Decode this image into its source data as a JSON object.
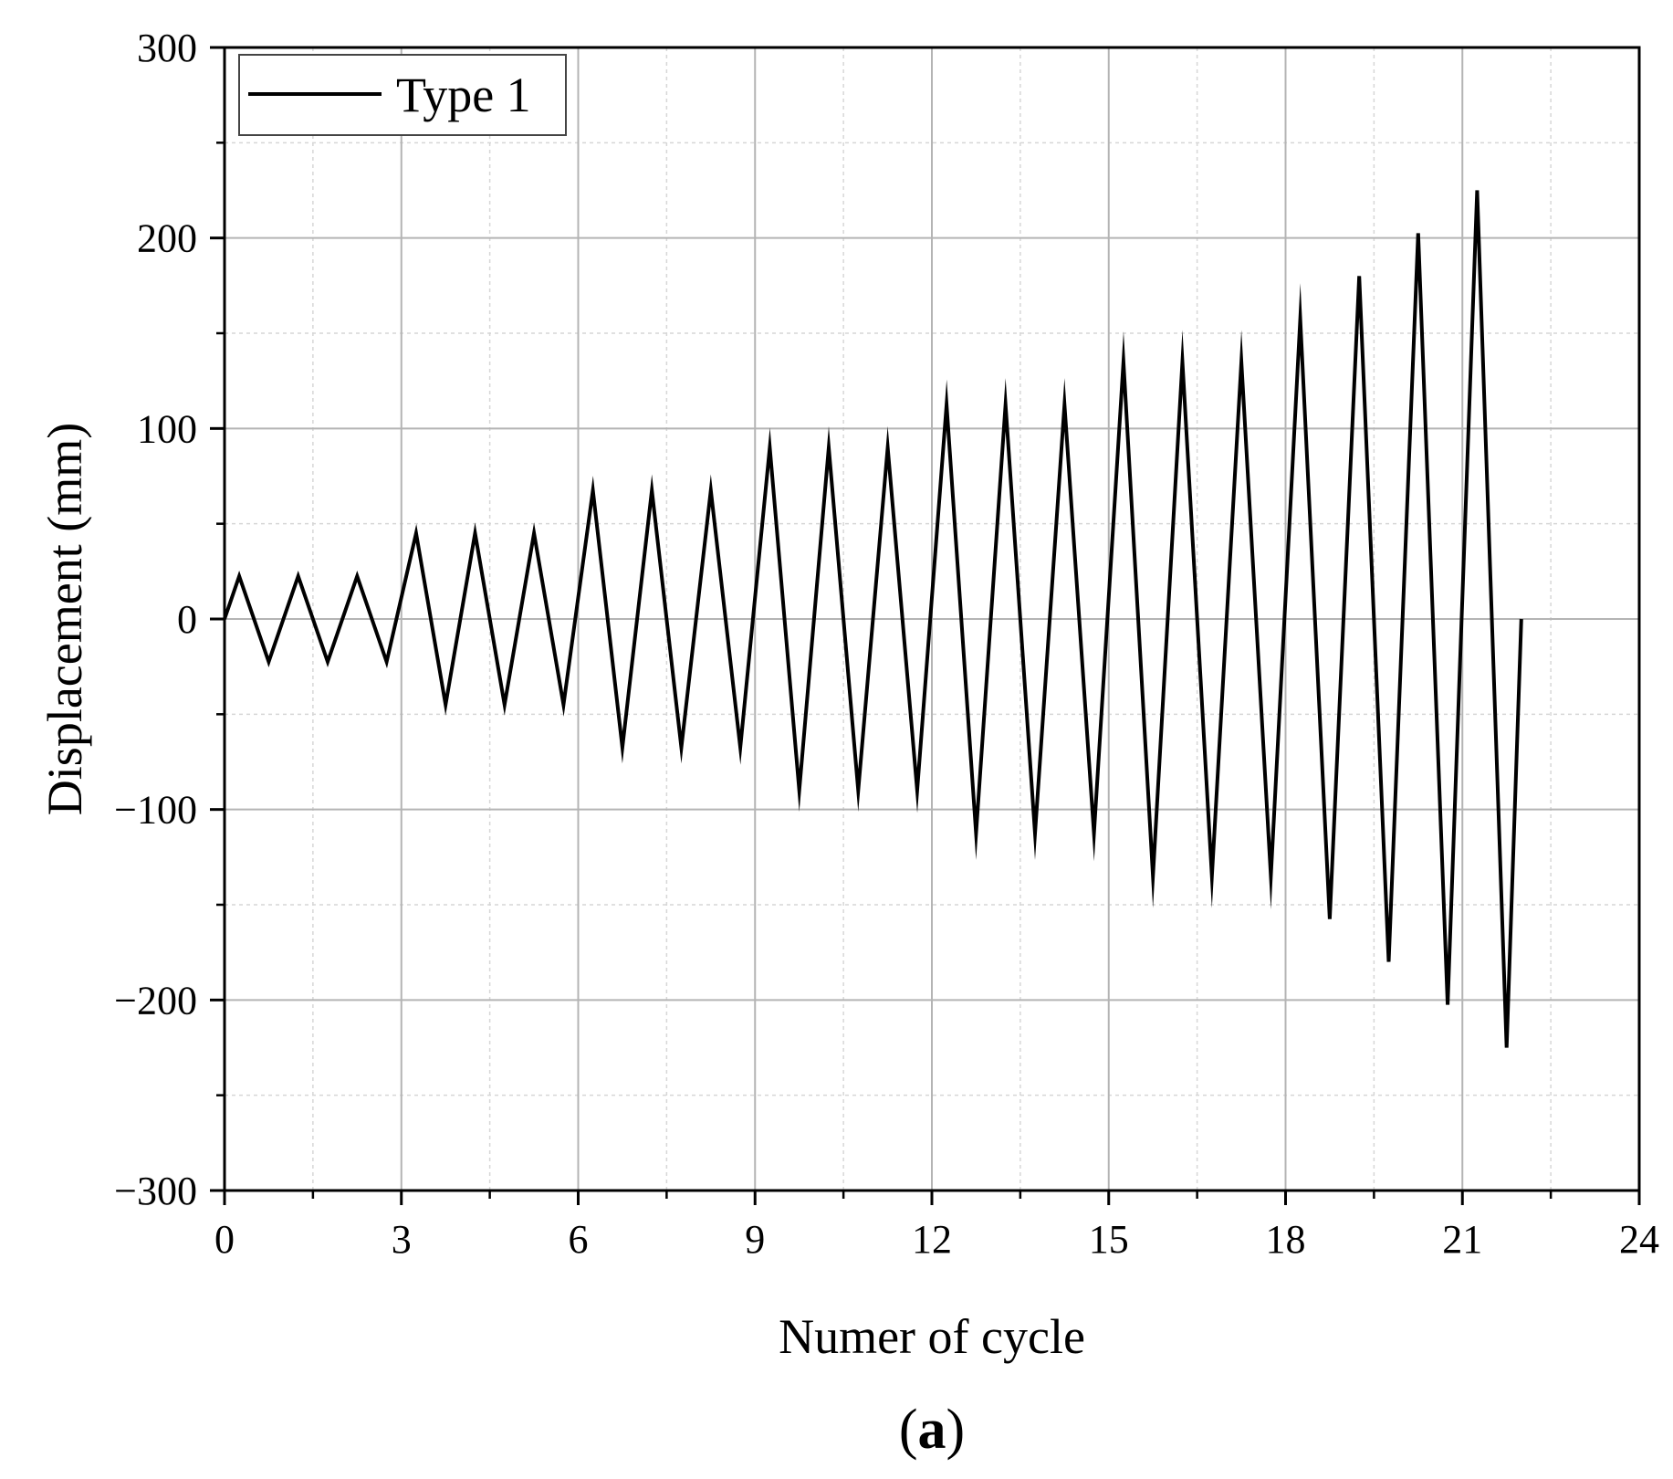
{
  "chart_data": {
    "type": "line",
    "title": "",
    "xlabel": "Numer of cycle",
    "ylabel": "Displacement (mm)",
    "xlim": [
      0,
      24
    ],
    "ylim": [
      -300,
      300
    ],
    "xticks": [
      0,
      3,
      6,
      9,
      12,
      15,
      18,
      21,
      24
    ],
    "yticks": [
      -300,
      -200,
      -100,
      0,
      100,
      200,
      300
    ],
    "xtick_labels": [
      "0",
      "3",
      "6",
      "9",
      "12",
      "15",
      "18",
      "21",
      "24"
    ],
    "ytick_labels": [
      "−300",
      "−200",
      "−100",
      "0",
      "100",
      "200",
      "300"
    ],
    "grid": true,
    "legend_position": "top-left",
    "caption": {
      "open": "(",
      "letter": "a",
      "close": ")"
    },
    "series": [
      {
        "name": "Type 1",
        "color": "#000000",
        "amplitudes": [
          22.5,
          45,
          67.5,
          90,
          112.5,
          135,
          135,
          157.5,
          180,
          202.5,
          225
        ],
        "cycles_per_amplitude": [
          3,
          3,
          3,
          3,
          3,
          2,
          1,
          1,
          1,
          1,
          1
        ]
      }
    ]
  }
}
